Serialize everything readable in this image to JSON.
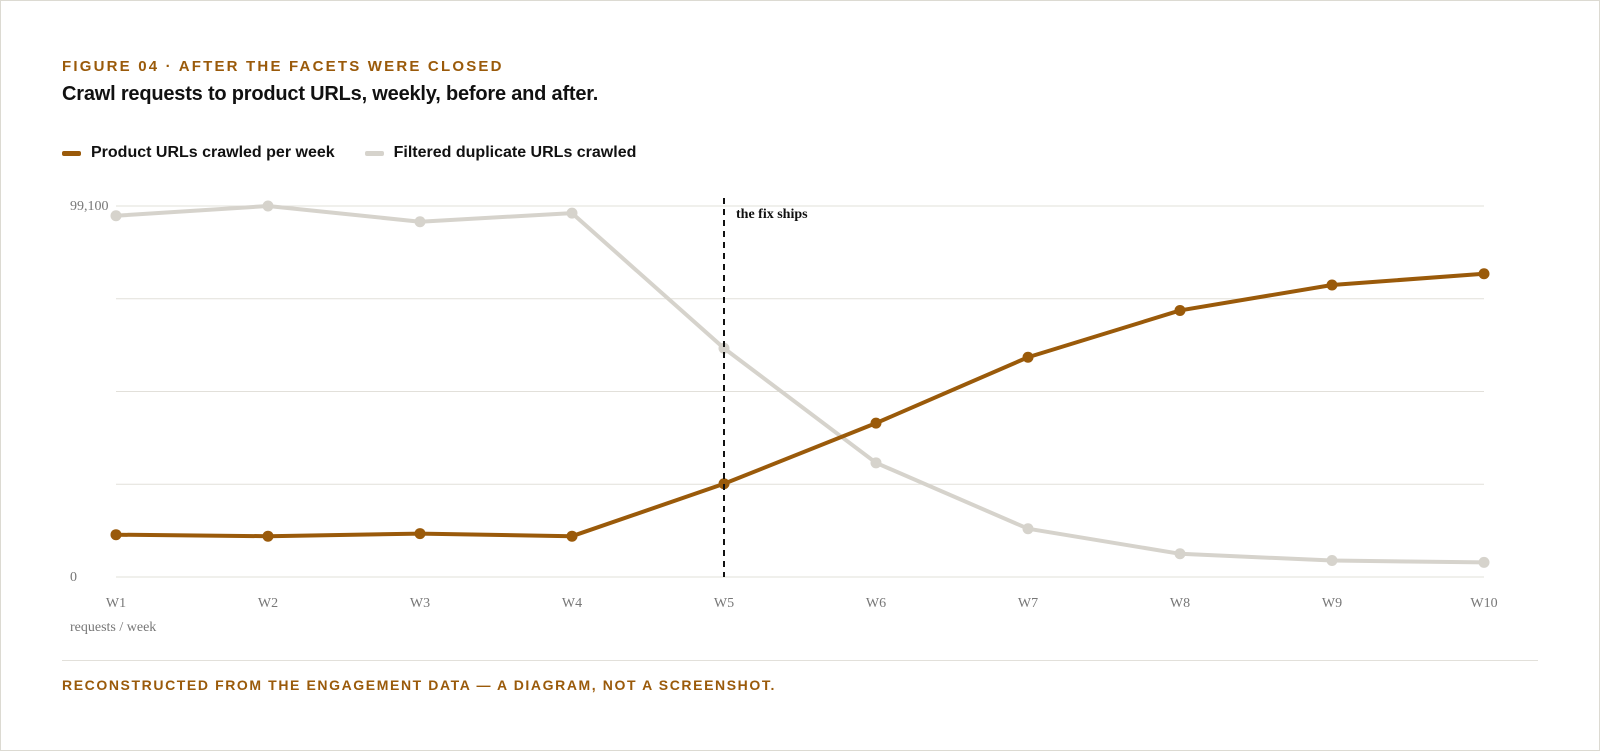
{
  "header": {
    "eyebrow": "FIGURE 04 · AFTER THE FACETS WERE CLOSED",
    "title": "Crawl requests to product URLs, weekly, before and after."
  },
  "footer": {
    "note": "RECONSTRUCTED FROM THE ENGAGEMENT DATA — A DIAGRAM, NOT A SCREENSHOT."
  },
  "colors": {
    "accent": "#9a5a0a",
    "product_series": "#9a5a0a",
    "duplicate_series": "#d6d3cc",
    "grid": "#e2e0da",
    "marker_line": "#111111"
  },
  "chart_data": {
    "type": "line",
    "categories": [
      "W1",
      "W2",
      "W3",
      "W4",
      "W5",
      "W6",
      "W7",
      "W8",
      "W9",
      "W10"
    ],
    "series": [
      {
        "name": "Product URLs crawled per week",
        "color": "#9a5a0a",
        "values": [
          11300,
          10900,
          11600,
          10900,
          24900,
          41100,
          58700,
          71200,
          78000,
          81000
        ]
      },
      {
        "name": "Filtered duplicate URLs crawled",
        "color": "#d6d3cc",
        "values": [
          96500,
          99100,
          94900,
          97200,
          61100,
          30500,
          12900,
          6200,
          4400,
          3900
        ]
      }
    ],
    "ylim": [
      0,
      99100
    ],
    "y_tick_labels": [
      {
        "value": 99100,
        "label": "99,100"
      },
      {
        "value": 0,
        "label": "0"
      }
    ],
    "y_gridlines": 5,
    "ylabel": "requests / week",
    "xlabel": "",
    "grid": true,
    "legend_position": "top-left",
    "annotation": {
      "category": "W5",
      "text": "the fix ships",
      "style": "dashed-vertical-line"
    }
  }
}
